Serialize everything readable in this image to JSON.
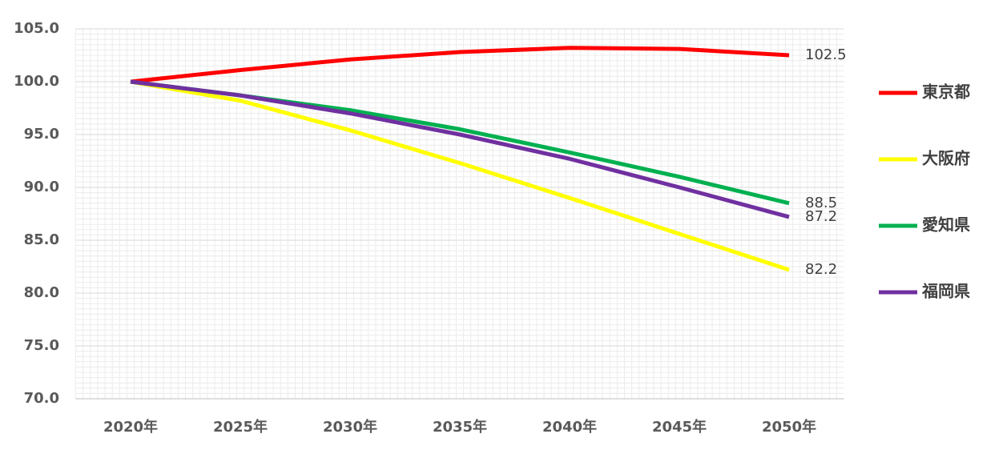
{
  "chart_data": {
    "type": "line",
    "categories": [
      "2020年",
      "2025年",
      "2030年",
      "2035年",
      "2040年",
      "2045年",
      "2050年"
    ],
    "series": [
      {
        "name": "東京都",
        "color": "#ff0000",
        "values": [
          100,
          101.1,
          102.1,
          102.8,
          103.2,
          103.1,
          102.5
        ]
      },
      {
        "name": "大阪府",
        "color": "#ffff00",
        "values": [
          100,
          98.2,
          95.4,
          92.3,
          89.0,
          85.6,
          82.2
        ]
      },
      {
        "name": "愛知県",
        "color": "#00b050",
        "values": [
          100,
          98.7,
          97.3,
          95.5,
          93.3,
          91.0,
          88.5
        ]
      },
      {
        "name": "福岡県",
        "color": "#7030a0",
        "values": [
          100,
          98.7,
          97.0,
          95.0,
          92.7,
          90.0,
          87.2
        ]
      }
    ],
    "ylim": [
      70,
      105
    ],
    "yticks": [
      {
        "value": 70,
        "label": "70.0"
      },
      {
        "value": 75,
        "label": "75.0"
      },
      {
        "value": 80,
        "label": "80.0"
      },
      {
        "value": 85,
        "label": "85.0"
      },
      {
        "value": 90,
        "label": "90.0"
      },
      {
        "value": 95,
        "label": "95.0"
      },
      {
        "value": 100,
        "label": "100.0"
      },
      {
        "value": 105,
        "label": "105.0"
      }
    ],
    "grid": true,
    "minor_grid": true,
    "legend": "right",
    "data_labels": "last"
  }
}
